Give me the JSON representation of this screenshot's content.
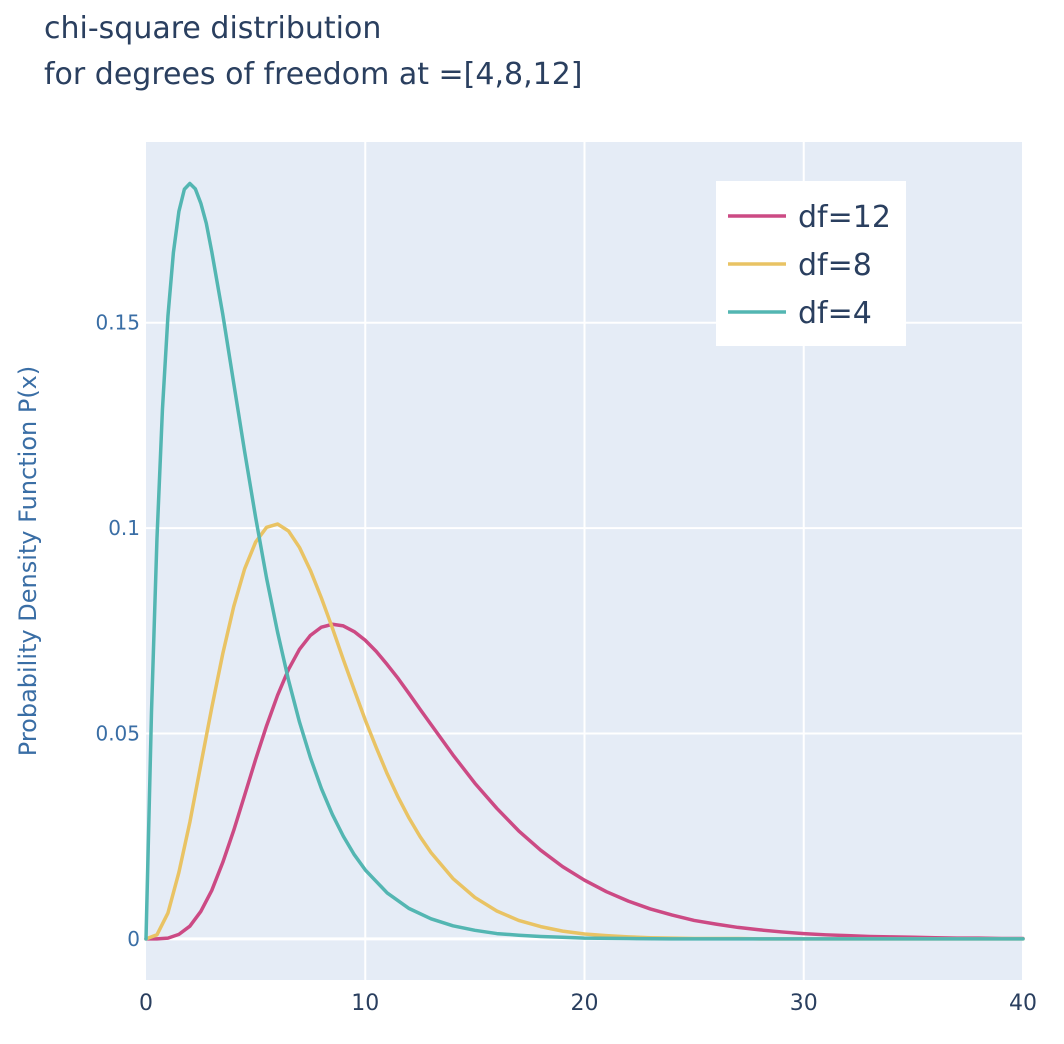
{
  "chart_data": {
    "type": "line",
    "title_lines": [
      "chi-square distribution",
      "for degrees of freedom at =[4,8,12]"
    ],
    "xlabel": "",
    "ylabel": "Probability Density Function P(x)",
    "xlim": [
      0,
      40
    ],
    "ylim": [
      -0.01,
      0.194
    ],
    "x_ticks": [
      0,
      10,
      20,
      30,
      40
    ],
    "x_tick_labels": [
      "0",
      "10",
      "20",
      "30",
      "40"
    ],
    "y_ticks": [
      0,
      0.05,
      0.1,
      0.15
    ],
    "y_tick_labels": [
      "0",
      "0.05",
      "0.1",
      "0.15"
    ],
    "grid": true,
    "legend_position": "top-right",
    "series": [
      {
        "name": "df=12",
        "color": "#cc4a84",
        "dof": 12,
        "x": [
          0,
          0.5,
          1,
          1.5,
          2,
          2.5,
          3,
          3.5,
          4,
          4.5,
          5,
          5.5,
          6,
          6.5,
          7,
          7.5,
          8,
          8.5,
          9,
          9.5,
          10,
          10.5,
          11,
          11.5,
          12,
          12.5,
          13,
          14,
          15,
          16,
          17,
          18,
          19,
          20,
          21,
          22,
          23,
          24,
          25,
          26,
          27,
          28,
          29,
          30,
          31,
          32,
          33,
          34,
          35,
          36,
          37,
          38,
          39,
          40
        ],
        "y": [
          0,
          0.0,
          0.0002,
          0.0011,
          0.0031,
          0.0067,
          0.0118,
          0.0186,
          0.0264,
          0.035,
          0.0437,
          0.0519,
          0.0593,
          0.0656,
          0.0705,
          0.0739,
          0.0759,
          0.0766,
          0.0762,
          0.0748,
          0.0727,
          0.07,
          0.0668,
          0.0634,
          0.0597,
          0.0559,
          0.0522,
          0.0448,
          0.0379,
          0.0318,
          0.0263,
          0.0216,
          0.0176,
          0.0143,
          0.0115,
          0.0092,
          0.0073,
          0.0058,
          0.0045,
          0.0036,
          0.0028,
          0.0022,
          0.0017,
          0.0013,
          0.001,
          0.0008,
          0.0006,
          0.0005,
          0.0004,
          0.0003,
          0.0002,
          0.0002,
          0.0001,
          0.0001
        ]
      },
      {
        "name": "df=8",
        "color": "#e9c364",
        "dof": 8,
        "x": [
          0,
          0.5,
          1,
          1.5,
          2,
          2.5,
          3,
          3.5,
          4,
          4.5,
          5,
          5.5,
          6,
          6.5,
          7,
          7.5,
          8,
          8.5,
          9,
          9.5,
          10,
          10.5,
          11,
          11.5,
          12,
          12.5,
          13,
          14,
          15,
          16,
          17,
          18,
          19,
          20,
          21,
          22,
          23,
          24,
          25,
          26,
          27,
          28,
          29,
          30,
          31,
          32,
          33,
          34,
          35,
          36,
          37,
          38,
          39,
          40
        ],
        "y": [
          0,
          0.001,
          0.0063,
          0.0162,
          0.0284,
          0.0424,
          0.0563,
          0.0694,
          0.0809,
          0.0901,
          0.0966,
          0.1002,
          0.101,
          0.0993,
          0.0953,
          0.0897,
          0.083,
          0.0757,
          0.068,
          0.0606,
          0.0533,
          0.0466,
          0.0402,
          0.0345,
          0.0294,
          0.0249,
          0.021,
          0.0147,
          0.0101,
          0.0068,
          0.0045,
          0.003,
          0.0019,
          0.0012,
          0.0008,
          0.0005,
          0.0003,
          0.0002,
          0.0001,
          0.0001,
          0.0001,
          0.0,
          0.0,
          0.0,
          0.0,
          0.0,
          0.0,
          0.0,
          0.0,
          0.0,
          0.0,
          0.0,
          0.0,
          0.0
        ]
      },
      {
        "name": "df=4",
        "color": "#53b6b2",
        "dof": 4,
        "x": [
          0,
          0.25,
          0.5,
          0.75,
          1,
          1.25,
          1.5,
          1.75,
          2,
          2.25,
          2.5,
          2.75,
          3,
          3.5,
          4,
          4.5,
          5,
          5.5,
          6,
          6.5,
          7,
          7.5,
          8,
          8.5,
          9,
          9.5,
          10,
          11,
          12,
          13,
          14,
          15,
          16,
          17,
          18,
          19,
          20,
          22,
          24,
          26,
          28,
          30,
          32,
          34,
          36,
          38,
          40
        ],
        "y": [
          0,
          0.0551,
          0.0974,
          0.1289,
          0.1516,
          0.1671,
          0.1771,
          0.1825,
          0.1839,
          0.1826,
          0.1791,
          0.1742,
          0.1673,
          0.1521,
          0.1353,
          0.1186,
          0.1026,
          0.0878,
          0.0747,
          0.063,
          0.0528,
          0.0441,
          0.0366,
          0.0303,
          0.025,
          0.0205,
          0.0168,
          0.0112,
          0.0074,
          0.0049,
          0.0032,
          0.0021,
          0.0013,
          0.0009,
          0.0006,
          0.0004,
          0.0002,
          0.0001,
          0.0,
          0.0,
          0.0,
          0.0,
          0.0,
          0.0,
          0.0,
          0.0,
          0.0
        ]
      }
    ]
  }
}
